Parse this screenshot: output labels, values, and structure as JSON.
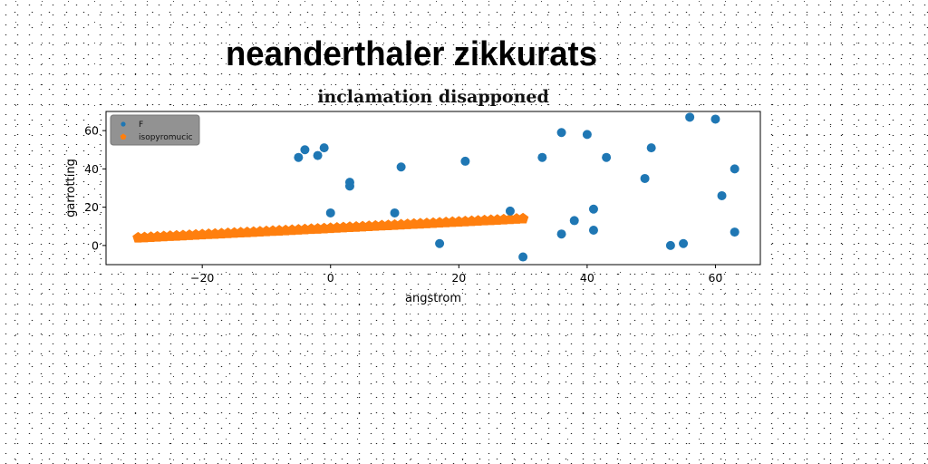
{
  "figure_title": "neanderthaler zikkurats",
  "chart_data": {
    "type": "scatter",
    "title": "inclamation disapроned",
    "xlabel": "angstrom",
    "ylabel": "garrotting",
    "xlim": [
      -35,
      67
    ],
    "ylim": [
      -10,
      70
    ],
    "xticks": [
      -20,
      0,
      20,
      40,
      60
    ],
    "yticks": [
      0,
      20,
      40,
      60
    ],
    "grid": false,
    "legend_position": "top-left",
    "series": [
      {
        "name": "F",
        "color": "#1f77b4",
        "marker": "circle",
        "points": [
          [
            -5,
            46
          ],
          [
            -4,
            50
          ],
          [
            -2,
            47
          ],
          [
            -1,
            51
          ],
          [
            0,
            17
          ],
          [
            3,
            33
          ],
          [
            3,
            31
          ],
          [
            10,
            17
          ],
          [
            11,
            41
          ],
          [
            17,
            1
          ],
          [
            21,
            44
          ],
          [
            28,
            18
          ],
          [
            30,
            -6
          ],
          [
            33,
            46
          ],
          [
            36,
            59
          ],
          [
            36,
            6
          ],
          [
            38,
            13
          ],
          [
            40,
            58
          ],
          [
            41,
            19
          ],
          [
            41,
            8
          ],
          [
            43,
            46
          ],
          [
            49,
            35
          ],
          [
            50,
            51
          ],
          [
            53,
            0
          ],
          [
            55,
            1
          ],
          [
            56,
            67
          ],
          [
            60,
            66
          ],
          [
            61,
            26
          ],
          [
            63,
            40
          ],
          [
            63,
            7
          ]
        ]
      },
      {
        "name": "isopyromucic",
        "color": "#ff7f0e",
        "marker": "pentagon",
        "x_start": -30,
        "x_end": 30,
        "count": 61,
        "y_start": 4,
        "y_end": 14
      }
    ]
  }
}
